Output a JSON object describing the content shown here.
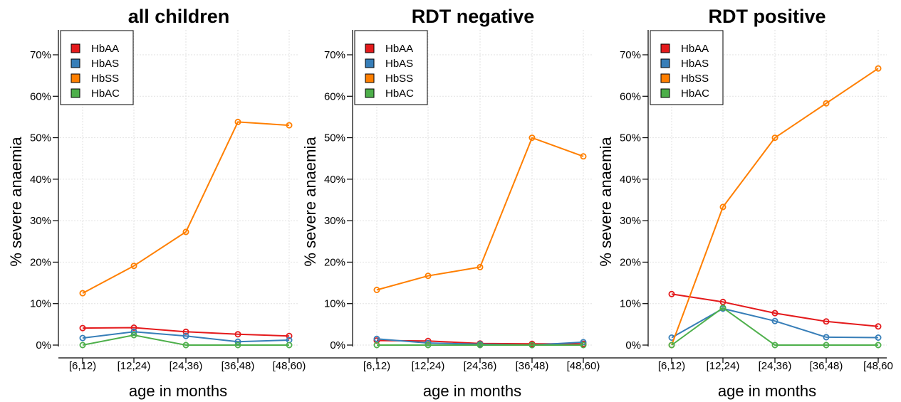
{
  "chart_data": [
    {
      "type": "line",
      "title": "all children",
      "xlabel": "age in months",
      "ylabel": "% severe anaemia",
      "categories": [
        "[6,12)",
        "[12,24)",
        "[24,36)",
        "[36,48)",
        "[48,60)"
      ],
      "y_ticks": [
        "0%",
        "10%",
        "20%",
        "30%",
        "40%",
        "50%",
        "60%",
        "70%"
      ],
      "ylim": [
        0,
        75
      ],
      "grid": true,
      "legend_position": "top-left",
      "series": [
        {
          "name": "HbAA",
          "color": "#E41A1C",
          "values": [
            4.1,
            4.2,
            3.2,
            2.6,
            2.2
          ]
        },
        {
          "name": "HbAS",
          "color": "#377EB8",
          "values": [
            1.7,
            3.2,
            2.2,
            0.8,
            1.2
          ]
        },
        {
          "name": "HbSS",
          "color": "#FF7F00",
          "values": [
            12.5,
            19.1,
            27.3,
            53.8,
            53.0
          ]
        },
        {
          "name": "HbAC",
          "color": "#4DAF4A",
          "values": [
            0.0,
            2.4,
            0.0,
            0.0,
            0.0
          ]
        }
      ]
    },
    {
      "type": "line",
      "title": "RDT negative",
      "xlabel": "age in months",
      "ylabel": "% severe anaemia",
      "categories": [
        "[6,12)",
        "[12,24)",
        "[24,36)",
        "[36,48)",
        "[48,60)"
      ],
      "y_ticks": [
        "0%",
        "10%",
        "20%",
        "30%",
        "40%",
        "50%",
        "60%",
        "70%"
      ],
      "ylim": [
        0,
        75
      ],
      "grid": true,
      "legend_position": "top-left",
      "series": [
        {
          "name": "HbAA",
          "color": "#E41A1C",
          "values": [
            1.1,
            1.0,
            0.4,
            0.3,
            0.3
          ]
        },
        {
          "name": "HbAS",
          "color": "#377EB8",
          "values": [
            1.5,
            0.5,
            0.2,
            0.0,
            0.7
          ]
        },
        {
          "name": "HbSS",
          "color": "#FF7F00",
          "values": [
            13.3,
            16.7,
            18.8,
            50.0,
            45.5
          ]
        },
        {
          "name": "HbAC",
          "color": "#4DAF4A",
          "values": [
            0.0,
            0.0,
            0.0,
            0.0,
            0.0
          ]
        }
      ]
    },
    {
      "type": "line",
      "title": "RDT positive",
      "xlabel": "age in months",
      "ylabel": "% severe anaemia",
      "categories": [
        "[6,12)",
        "[12,24)",
        "[24,36)",
        "[36,48)",
        "[48,60"
      ],
      "y_ticks": [
        "0%",
        "10%",
        "20%",
        "30%",
        "40%",
        "50%",
        "60%",
        "70%"
      ],
      "ylim": [
        0,
        75
      ],
      "grid": true,
      "legend_position": "top-left",
      "series": [
        {
          "name": "HbAA",
          "color": "#E41A1C",
          "values": [
            12.3,
            10.4,
            7.7,
            5.7,
            4.5
          ]
        },
        {
          "name": "HbAS",
          "color": "#377EB8",
          "values": [
            1.8,
            8.8,
            5.8,
            1.9,
            1.8
          ]
        },
        {
          "name": "HbSS",
          "color": "#FF7F00",
          "values": [
            0.0,
            33.3,
            50.0,
            58.3,
            66.7
          ]
        },
        {
          "name": "HbAC",
          "color": "#4DAF4A",
          "values": [
            0.0,
            9.0,
            0.0,
            0.0,
            0.0
          ]
        }
      ]
    }
  ]
}
